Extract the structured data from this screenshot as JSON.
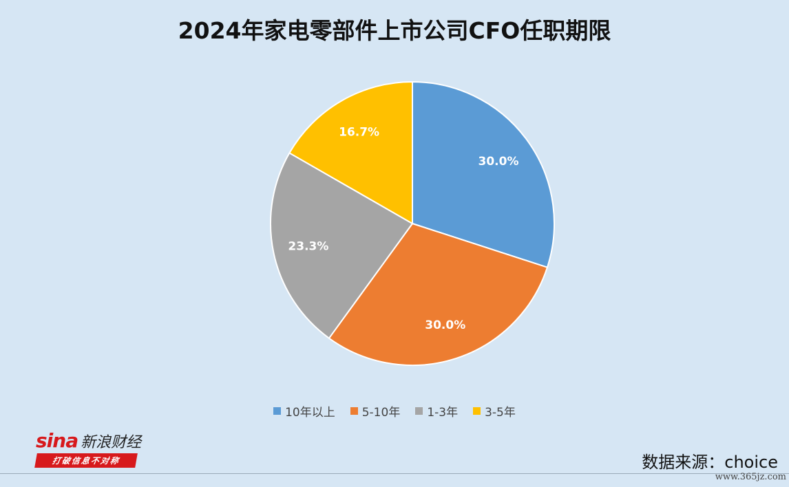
{
  "title": "2024年家电零部件上市公司CFO任职期限",
  "chart_data": {
    "type": "pie",
    "title": "2024年家电零部件上市公司CFO任职期限",
    "categories": [
      "10年以上",
      "5-10年",
      "1-3年",
      "3-5年"
    ],
    "values": [
      30.0,
      30.0,
      23.3,
      16.7
    ],
    "labels": [
      "30.0%",
      "30.0%",
      "23.3%",
      "16.7%"
    ],
    "colors": [
      "#5b9bd5",
      "#ed7d31",
      "#a5a5a5",
      "#ffc000"
    ],
    "legend_position": "bottom"
  },
  "branding": {
    "logo_text": "sina",
    "logo_cn": "新浪财经",
    "slogan": "打破信息不对称"
  },
  "source": "数据来源：choice",
  "watermark": "www.365jz.com"
}
